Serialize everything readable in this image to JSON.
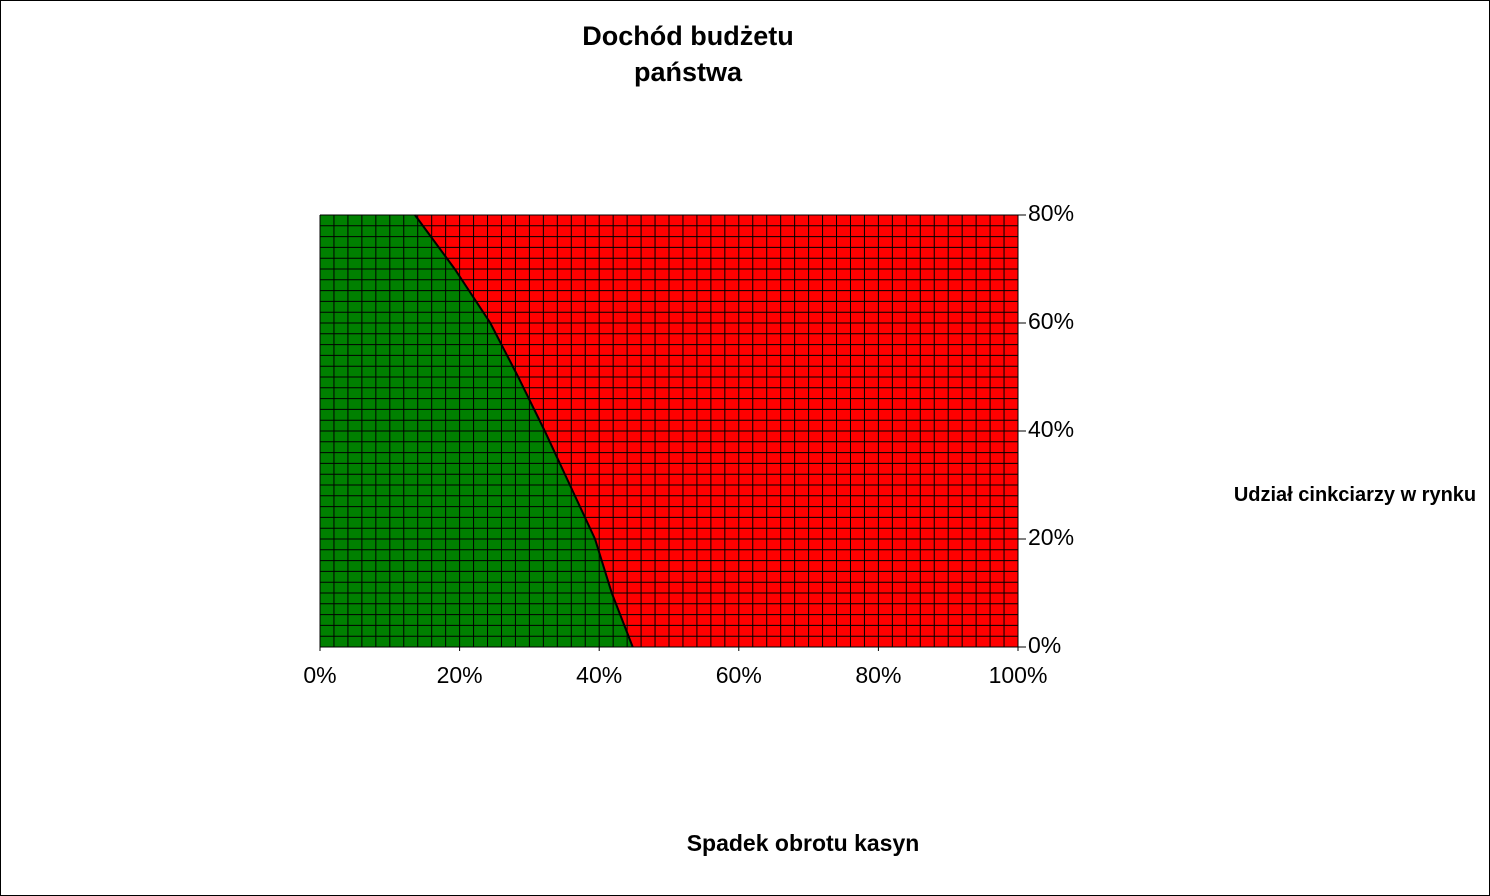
{
  "chart_data": {
    "type": "contour",
    "title": "Dochód budżetu państwa",
    "x_label": "Spadek obrotu kasyn",
    "y_label": "Udział cinkciarzy w rynku",
    "boundary": {
      "x": [
        13.6,
        19.3,
        24.4,
        28.4,
        32.2,
        35.8,
        39.4,
        41.8,
        44.8
      ],
      "y": [
        80,
        70,
        60,
        50,
        40,
        30,
        20,
        10,
        0
      ]
    },
    "left_color": "#008000",
    "right_color": "#ff0000",
    "xlim": [
      0,
      100
    ],
    "ylim": [
      0,
      80
    ],
    "xticks": [
      {
        "value": 0,
        "label": "0%"
      },
      {
        "value": 20,
        "label": "20%"
      },
      {
        "value": 40,
        "label": "40%"
      },
      {
        "value": 60,
        "label": "60%"
      },
      {
        "value": 80,
        "label": "80%"
      },
      {
        "value": 100,
        "label": "100%"
      }
    ],
    "yticks": [
      {
        "value": 0,
        "label": "0%"
      },
      {
        "value": 20,
        "label": "20%"
      },
      {
        "value": 40,
        "label": "40%"
      },
      {
        "value": 60,
        "label": "60%"
      },
      {
        "value": 80,
        "label": "80%"
      }
    ],
    "grid": true
  }
}
